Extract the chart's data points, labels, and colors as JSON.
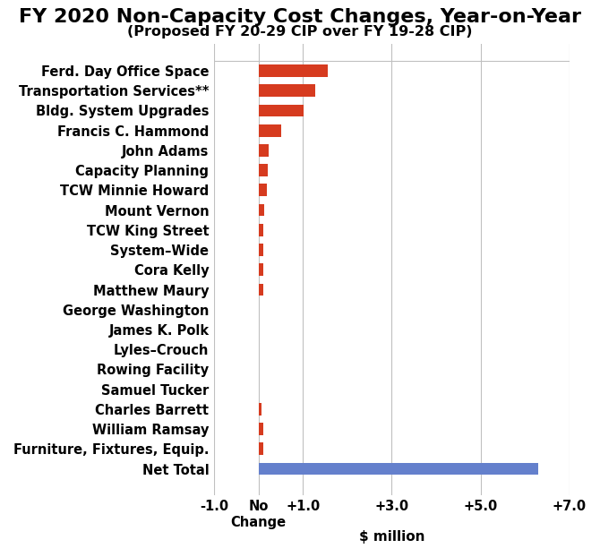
{
  "title": "FY 2020 Non-Capacity Cost Changes, Year-on-Year",
  "subtitle": "(Proposed FY 20-29 CIP over FY 19-28 CIP)",
  "categories": [
    "Ferd. Day Office Space",
    "Transportation Services**",
    "Bldg. System Upgrades",
    "Francis C. Hammond",
    "John Adams",
    "Capacity Planning",
    "TCW Minnie Howard",
    "Mount Vernon",
    "TCW King Street",
    "System–Wide",
    "Cora Kelly",
    "Matthew Maury",
    "George Washington",
    "James K. Polk",
    "Lyles–Crouch",
    "Rowing Facility",
    "Samuel Tucker",
    "Charles Barrett",
    "William Ramsay",
    "Furniture, Fixtures, Equip.",
    "Net Total"
  ],
  "values": [
    1.55,
    1.28,
    1.02,
    0.52,
    0.22,
    0.2,
    0.19,
    0.12,
    0.11,
    0.11,
    0.1,
    0.1,
    0.005,
    0.005,
    0.005,
    0.005,
    0.005,
    0.06,
    0.1,
    0.11,
    6.3
  ],
  "bar_colors": [
    "#d63b1f",
    "#d63b1f",
    "#d63b1f",
    "#d63b1f",
    "#d63b1f",
    "#d63b1f",
    "#d63b1f",
    "#d63b1f",
    "#d63b1f",
    "#d63b1f",
    "#d63b1f",
    "#d63b1f",
    "#d63b1f",
    "#d63b1f",
    "#d63b1f",
    "#d63b1f",
    "#d63b1f",
    "#d63b1f",
    "#d63b1f",
    "#d63b1f",
    "#6480cc"
  ],
  "xlim": [
    -1.0,
    7.0
  ],
  "xticks": [
    -1.0,
    0.0,
    1.0,
    3.0,
    5.0,
    7.0
  ],
  "xticklabels": [
    "-1.0",
    "No\nChange",
    "+1.0",
    "+3.0",
    "+5.0",
    "+7.0"
  ],
  "xlabel": "$ million",
  "background_color": "#ffffff",
  "grid_color": "#c0c0c0",
  "title_fontsize": 16,
  "subtitle_fontsize": 11.5,
  "label_fontsize": 10.5,
  "bar_height": 0.62
}
